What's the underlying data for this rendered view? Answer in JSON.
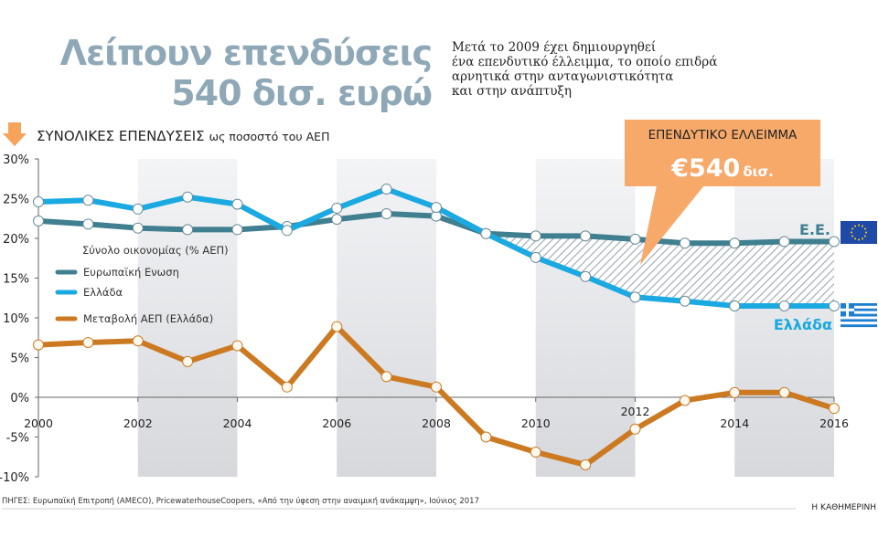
{
  "header": {
    "title_line1": "Λείπουν επενδύσεις",
    "title_line2": "540 δισ. ευρώ",
    "subtitle": [
      "Μετά το 2009 έχει δημιουργηθεί",
      "ένα επενδυτικό έλλειμμα, το οποίο επιδρά",
      "αρνητικά στην ανταγωνιστικότητα",
      "και στην ανάπτυξη"
    ]
  },
  "callout": {
    "title": "ΕΠΕΝΔΥΤΙΚΟ ΕΛΛΕΙΜΜΑ",
    "amount": "€540",
    "unit": "δισ."
  },
  "footer": {
    "source": "ΠΗΓΕΣ: Ευρωπαϊκή Επιτροπή (AMECO), PricewaterhouseCoopers, «Από την ύφεση στην αναιμική ανάκαμψη», Ιούνιος 2017",
    "brand": "Η ΚΑΘΗΜΕΡΙΝΗ"
  },
  "chart_data": {
    "type": "line",
    "title": "ΣΥΝΟΛΙΚΕΣ ΕΠΕΝΔΥΣΕΙΣ",
    "title_suffix": "ως ποσοστό του ΑΕΠ",
    "legend_title": "Σύνολο οικονομίας (% ΑΕΠ)",
    "legend_position": "left",
    "x": [
      2000,
      2001,
      2002,
      2003,
      2004,
      2005,
      2006,
      2007,
      2008,
      2009,
      2010,
      2011,
      2012,
      2013,
      2014,
      2015,
      2016
    ],
    "x_tick_labels": [
      "2000",
      "2002",
      "2004",
      "2006",
      "2008",
      "2010",
      "2012",
      "2014",
      "2016"
    ],
    "y_tick_labels": [
      "30%",
      "25%",
      "20%",
      "15%",
      "10%",
      "5%",
      "0%",
      "-5%",
      "-10%"
    ],
    "ylim": [
      -10,
      30
    ],
    "shaded_bands": [
      [
        2002,
        2004
      ],
      [
        2006,
        2008
      ],
      [
        2010,
        2012
      ],
      [
        2014,
        2016
      ]
    ],
    "gap_fill_from": 2009,
    "series": [
      {
        "name": "Ευρωπαϊκή Ενωση",
        "end_label": "Ε.Ε.",
        "color": "#3f7f8f",
        "values": [
          22.2,
          21.8,
          21.3,
          21.1,
          21.1,
          21.5,
          22.4,
          23.1,
          22.8,
          20.6,
          20.3,
          20.3,
          19.9,
          19.4,
          19.4,
          19.6,
          19.6
        ]
      },
      {
        "name": "Ελλάδα",
        "end_label": "Ελλάδα",
        "color": "#1aa9e1",
        "values": [
          24.6,
          24.8,
          23.7,
          25.2,
          24.3,
          21.0,
          23.8,
          26.2,
          23.9,
          20.6,
          17.6,
          15.2,
          12.6,
          12.1,
          11.5,
          11.5,
          11.5
        ]
      },
      {
        "name": "Μεταβολή ΑΕΠ (Ελλάδα)",
        "color": "#cc7a22",
        "values": [
          6.6,
          6.9,
          7.1,
          4.5,
          6.5,
          1.3,
          8.9,
          2.6,
          1.3,
          -5.0,
          -6.9,
          -8.5,
          -4.0,
          -0.4,
          0.6,
          0.6,
          -1.4
        ]
      }
    ],
    "accent_color": "#f7a96a"
  }
}
